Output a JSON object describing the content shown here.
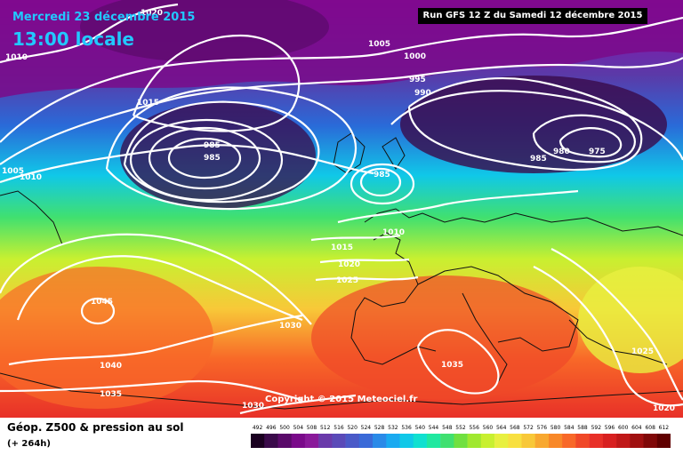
{
  "header": {
    "date": "Mercredi 23 décembre 2015",
    "time": "13:00 locale",
    "run": "Run GFS 12 Z du Samedi 12 décembre 2015"
  },
  "copyright": "Copyright © 2015 Meteociel.fr",
  "footer": {
    "product": "Géop. Z500 & pression au sol",
    "lead": "(+ 264h)"
  },
  "legend": {
    "values": [
      "492",
      "496",
      "500",
      "504",
      "508",
      "512",
      "516",
      "520",
      "524",
      "528",
      "532",
      "536",
      "540",
      "544",
      "548",
      "552",
      "556",
      "560",
      "564",
      "568",
      "572",
      "576",
      "580",
      "584",
      "588",
      "592",
      "596",
      "600",
      "604",
      "608",
      "612"
    ],
    "colors": [
      "#1a0020",
      "#3a0a4a",
      "#5a0a6a",
      "#7a0a8a",
      "#8a1a9a",
      "#6a3aaa",
      "#5a4ab8",
      "#4a5ac8",
      "#3a6ad8",
      "#2a8ae8",
      "#1aaaf0",
      "#10c8e8",
      "#10e0d0",
      "#20e8a0",
      "#40e070",
      "#70e040",
      "#a0e830",
      "#c8f030",
      "#e8f040",
      "#f8e040",
      "#f8c838",
      "#f8a830",
      "#f88828",
      "#f86828",
      "#f04828",
      "#e83028",
      "#d82020",
      "#c01818",
      "#a01010",
      "#800808",
      "#600000"
    ]
  },
  "isobars": [
    {
      "value": "1020",
      "kind": "pressure"
    },
    {
      "value": "1010",
      "kind": "pressure"
    },
    {
      "value": "1015",
      "kind": "pressure"
    },
    {
      "value": "985",
      "kind": "pressure"
    },
    {
      "value": "1005",
      "kind": "pressure"
    },
    {
      "value": "1010",
      "kind": "pressure"
    },
    {
      "value": "1005",
      "kind": "pressure"
    },
    {
      "value": "1000",
      "kind": "pressure"
    },
    {
      "value": "995",
      "kind": "pressure"
    },
    {
      "value": "990",
      "kind": "pressure"
    },
    {
      "value": "985",
      "kind": "pressure"
    },
    {
      "value": "980",
      "kind": "pressure"
    },
    {
      "value": "975",
      "kind": "pressure"
    },
    {
      "value": "985",
      "kind": "pressure"
    },
    {
      "value": "985",
      "kind": "pressure"
    },
    {
      "value": "1010",
      "kind": "pressure"
    },
    {
      "value": "1015",
      "kind": "pressure"
    },
    {
      "value": "1020",
      "kind": "pressure"
    },
    {
      "value": "1025",
      "kind": "pressure"
    },
    {
      "value": "1045",
      "kind": "pressure"
    },
    {
      "value": "1030",
      "kind": "pressure"
    },
    {
      "value": "1040",
      "kind": "pressure"
    },
    {
      "value": "1035",
      "kind": "pressure"
    },
    {
      "value": "1035",
      "kind": "pressure"
    },
    {
      "value": "1030",
      "kind": "pressure"
    },
    {
      "value": "1025",
      "kind": "pressure"
    },
    {
      "value": "1020",
      "kind": "pressure"
    }
  ]
}
